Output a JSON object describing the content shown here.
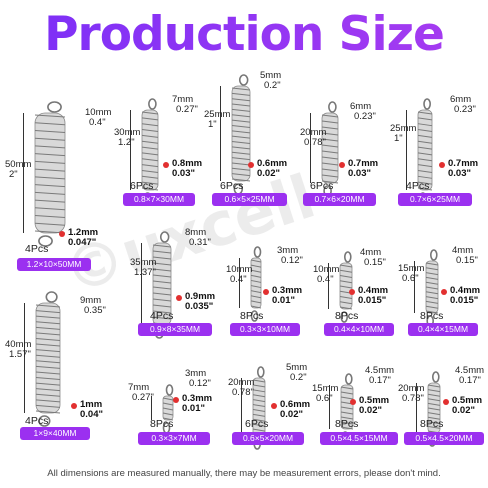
{
  "title": "Production Size",
  "watermark": "©uxcell",
  "footer": "All dimensions are measured manually, there may be measurement errors, please don't mind.",
  "accent": "#9b30f0",
  "items": [
    {
      "id": "s1",
      "len_mm": "50mm",
      "len_in": "2\"",
      "hook_mm": "10mm",
      "hook_in": "0.4\"",
      "wire_mm": "1.2mm",
      "wire_in": "0.047\"",
      "qty": "4Pcs",
      "spec": "1.2×10×50MM"
    },
    {
      "id": "s2",
      "len_mm": "30mm",
      "len_in": "1.2\"",
      "hook_mm": "7mm",
      "hook_in": "0.27\"",
      "wire_mm": "0.8mm",
      "wire_in": "0.03\"",
      "qty": "6Pcs",
      "spec": "0.8×7×30MM"
    },
    {
      "id": "s3",
      "len_mm": "25mm",
      "len_in": "1\"",
      "hook_mm": "5mm",
      "hook_in": "0.2\"",
      "wire_mm": "0.6mm",
      "wire_in": "0.02\"",
      "qty": "6Pcs",
      "spec": "0.6×5×25MM"
    },
    {
      "id": "s4",
      "len_mm": "20mm",
      "len_in": "0.78\"",
      "hook_mm": "6mm",
      "hook_in": "0.23\"",
      "wire_mm": "0.7mm",
      "wire_in": "0.03\"",
      "qty": "6Pcs",
      "spec": "0.7×6×20MM"
    },
    {
      "id": "s5",
      "len_mm": "25mm",
      "len_in": "1\"",
      "hook_mm": "6mm",
      "hook_in": "0.23\"",
      "wire_mm": "0.7mm",
      "wire_in": "0.03\"",
      "qty": "4Pcs",
      "spec": "0.7×6×25MM"
    },
    {
      "id": "s6",
      "len_mm": "35mm",
      "len_in": "1.37\"",
      "hook_mm": "8mm",
      "hook_in": "0.31\"",
      "wire_mm": "0.9mm",
      "wire_in": "0.035\"",
      "qty": "4Pcs",
      "spec": "0.9×8×35MM"
    },
    {
      "id": "s7",
      "len_mm": "10mm",
      "len_in": "0.4\"",
      "hook_mm": "3mm",
      "hook_in": "0.12\"",
      "wire_mm": "0.3mm",
      "wire_in": "0.01\"",
      "qty": "8Pcs",
      "spec": "0.3×3×10MM"
    },
    {
      "id": "s8",
      "len_mm": "10mm",
      "len_in": "0.4\"",
      "hook_mm": "4mm",
      "hook_in": "0.15\"",
      "wire_mm": "0.4mm",
      "wire_in": "0.015\"",
      "qty": "8Pcs",
      "spec": "0.4×4×10MM"
    },
    {
      "id": "s9",
      "len_mm": "15mm",
      "len_in": "0.6\"",
      "hook_mm": "4mm",
      "hook_in": "0.15\"",
      "wire_mm": "0.4mm",
      "wire_in": "0.015\"",
      "qty": "8Pcs",
      "spec": "0.4×4×15MM"
    },
    {
      "id": "s10",
      "len_mm": "40mm",
      "len_in": "1.57\"",
      "hook_mm": "9mm",
      "hook_in": "0.35\"",
      "wire_mm": "1mm",
      "wire_in": "0.04\"",
      "qty": "4Pcs",
      "spec": "1×9×40MM"
    },
    {
      "id": "s11",
      "len_mm": "7mm",
      "len_in": "0.27\"",
      "hook_mm": "3mm",
      "hook_in": "0.12\"",
      "wire_mm": "0.3mm",
      "wire_in": "0.01\"",
      "qty": "8Pcs",
      "spec": "0.3×3×7MM"
    },
    {
      "id": "s12",
      "len_mm": "20mm",
      "len_in": "0.78\"",
      "hook_mm": "5mm",
      "hook_in": "0.2\"",
      "wire_mm": "0.6mm",
      "wire_in": "0.02\"",
      "qty": "6Pcs",
      "spec": "0.6×5×20MM"
    },
    {
      "id": "s13",
      "len_mm": "15mm",
      "len_in": "0.6\"",
      "hook_mm": "4.5mm",
      "hook_in": "0.17\"",
      "wire_mm": "0.5mm",
      "wire_in": "0.02\"",
      "qty": "8Pcs",
      "spec": "0.5×4.5×15MM"
    },
    {
      "id": "s14",
      "len_mm": "20mm",
      "len_in": "0.78\"",
      "hook_mm": "4.5mm",
      "hook_in": "0.17\"",
      "wire_mm": "0.5mm",
      "wire_in": "0.02\"",
      "qty": "8Pcs",
      "spec": "0.5×4.5×20MM"
    }
  ]
}
